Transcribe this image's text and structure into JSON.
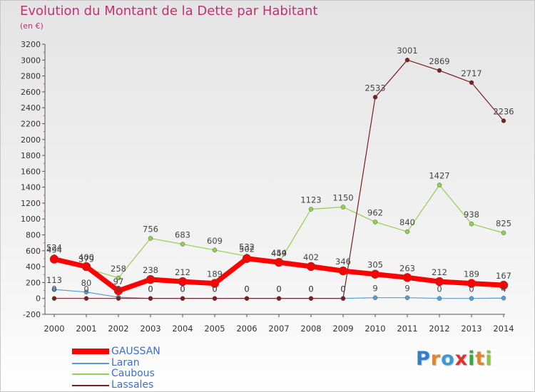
{
  "header": {
    "title": "Evolution du Montant de la Dette par Habitant",
    "subtitle": "(en €)"
  },
  "logo": {
    "text": "Proxiti",
    "colors": [
      "#2f7fd0",
      "#e2852a",
      "#3a9ad9",
      "#e03030",
      "#3aa83a",
      "#e2852a",
      "#8bc34a"
    ]
  },
  "chart_data": {
    "type": "line",
    "title": "Evolution du Montant de la Dette par Habitant",
    "subtitle": "(en €)",
    "x": [
      2000,
      2001,
      2002,
      2003,
      2004,
      2005,
      2006,
      2007,
      2008,
      2009,
      2010,
      2011,
      2012,
      2013,
      2014
    ],
    "ylim": [
      -200,
      3200
    ],
    "yticks": [
      -200,
      0,
      200,
      400,
      600,
      800,
      1000,
      1200,
      1400,
      1600,
      1800,
      2000,
      2200,
      2400,
      2600,
      2800,
      3000,
      3200
    ],
    "grid": false,
    "legend_position": "bottom-left",
    "series": [
      {
        "name": "Laran",
        "color": "#5b9bd5",
        "values": [
          113,
          80,
          15,
          0,
          0,
          0,
          0,
          0,
          0,
          0,
          9,
          9,
          0,
          0,
          4
        ],
        "labels": [
          "113",
          "80",
          "",
          "0",
          "0",
          "0",
          "0",
          "0",
          "0",
          "0",
          "9",
          "9",
          "0",
          "0",
          "4"
        ]
      },
      {
        "name": "Caubous",
        "color": "#92d050",
        "values": [
          524,
          379,
          258,
          756,
          683,
          609,
          532,
          449,
          1123,
          1150,
          962,
          840,
          1427,
          938,
          825
        ],
        "labels": [
          "524",
          "379",
          "258",
          "756",
          "683",
          "609",
          "532",
          "449",
          "1123",
          "1150",
          "962",
          "840",
          "1427",
          "938",
          "825"
        ]
      },
      {
        "name": "Lassales",
        "color": "#7a1f1f",
        "values": [
          0,
          0,
          0,
          0,
          0,
          0,
          0,
          0,
          0,
          0,
          2533,
          3001,
          2869,
          2717,
          2236
        ],
        "labels": [
          "0",
          "0",
          "0",
          "0",
          "0",
          "0",
          "0",
          "0",
          "0",
          "0",
          "2533",
          "3001",
          "2869",
          "2717",
          "2236"
        ]
      },
      {
        "name": "GAUSSAN",
        "color": "#ff0000",
        "values": [
          494,
          400,
          97,
          238,
          212,
          189,
          502,
          454,
          402,
          346,
          305,
          263,
          212,
          189,
          167
        ],
        "labels": [
          "494",
          "400",
          "97",
          "238",
          "212",
          "189",
          "502",
          "454",
          "402",
          "346",
          "305",
          "263",
          "212",
          "189",
          "167"
        ]
      }
    ]
  }
}
